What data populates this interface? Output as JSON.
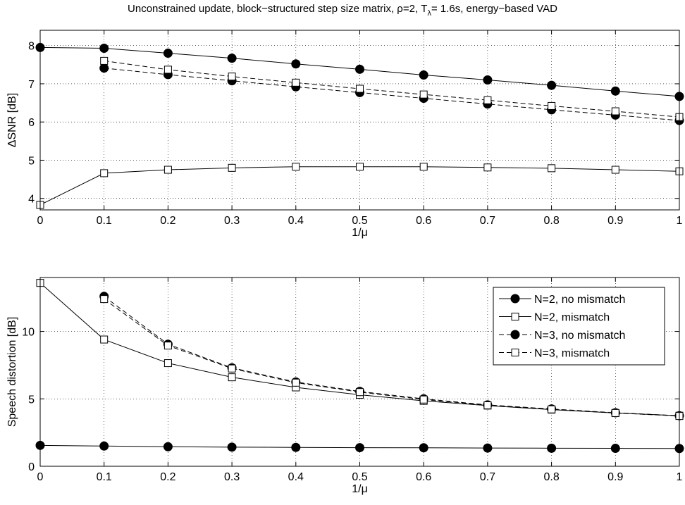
{
  "figure_title": {
    "main": "Unconstrained update, block−structured step size matrix, ρ=2, T",
    "subscript": "λ",
    "rest": "= 1.6s, energy−based VAD"
  },
  "chart_data": [
    {
      "type": "line",
      "xlabel": "1/μ",
      "ylabel": "ΔSNR [dB]",
      "xlim": [
        0,
        1
      ],
      "ylim": [
        3.7,
        8.4
      ],
      "grid": true,
      "legend": null,
      "xticks": [
        0,
        0.1,
        0.2,
        0.3,
        0.4,
        0.5,
        0.6,
        0.7,
        0.8,
        0.9,
        1
      ],
      "xticklabels": [
        "0",
        "0.1",
        "0.2",
        "0.3",
        "0.4",
        "0.5",
        "0.6",
        "0.7",
        "0.8",
        "0.9",
        "1"
      ],
      "yticks": [
        4,
        5,
        6,
        7,
        8
      ],
      "yticklabels": [
        "4",
        "5",
        "6",
        "7",
        "8"
      ],
      "series": [
        {
          "name": "N=2, no mismatch",
          "marker": "circle",
          "linestyle": "solid",
          "x": [
            0,
            0.1,
            0.2,
            0.3,
            0.4,
            0.5,
            0.6,
            0.7,
            0.8,
            0.9,
            1
          ],
          "y": [
            7.95,
            7.93,
            7.8,
            7.67,
            7.52,
            7.38,
            7.23,
            7.1,
            6.96,
            6.81,
            6.67
          ]
        },
        {
          "name": "N=2, mismatch",
          "marker": "square",
          "linestyle": "solid",
          "x": [
            0,
            0.1,
            0.2,
            0.3,
            0.4,
            0.5,
            0.6,
            0.7,
            0.8,
            0.9,
            1
          ],
          "y": [
            3.83,
            4.66,
            4.75,
            4.8,
            4.83,
            4.83,
            4.83,
            4.81,
            4.79,
            4.75,
            4.71
          ]
        },
        {
          "name": "N=3, no mismatch",
          "marker": "circle",
          "linestyle": "dashed",
          "x": [
            0.1,
            0.2,
            0.3,
            0.4,
            0.5,
            0.6,
            0.7,
            0.8,
            0.9,
            1
          ],
          "y": [
            7.41,
            7.24,
            7.08,
            6.92,
            6.77,
            6.62,
            6.47,
            6.32,
            6.18,
            6.04
          ]
        },
        {
          "name": "N=3, mismatch",
          "marker": "square",
          "linestyle": "dashed",
          "x": [
            0.1,
            0.2,
            0.3,
            0.4,
            0.5,
            0.6,
            0.7,
            0.8,
            0.9,
            1
          ],
          "y": [
            7.6,
            7.37,
            7.19,
            7.03,
            6.87,
            6.72,
            6.57,
            6.42,
            6.28,
            6.13
          ]
        }
      ]
    },
    {
      "type": "line",
      "xlabel": "1/μ",
      "ylabel": "Speech distortion [dB]",
      "xlim": [
        0,
        1
      ],
      "ylim": [
        0,
        14
      ],
      "grid": true,
      "legend": "top-right",
      "xticks": [
        0,
        0.1,
        0.2,
        0.3,
        0.4,
        0.5,
        0.6,
        0.7,
        0.8,
        0.9,
        1
      ],
      "xticklabels": [
        "0",
        "0.1",
        "0.2",
        "0.3",
        "0.4",
        "0.5",
        "0.6",
        "0.7",
        "0.8",
        "0.9",
        "1"
      ],
      "yticks": [
        0,
        5,
        10
      ],
      "yticklabels": [
        "0",
        "5",
        "10"
      ],
      "series": [
        {
          "name": "N=2, no mismatch",
          "marker": "circle",
          "linestyle": "solid",
          "x": [
            0,
            0.1,
            0.2,
            0.3,
            0.4,
            0.5,
            0.6,
            0.7,
            0.8,
            0.9,
            1
          ],
          "y": [
            1.55,
            1.5,
            1.45,
            1.42,
            1.4,
            1.38,
            1.37,
            1.35,
            1.34,
            1.33,
            1.32
          ]
        },
        {
          "name": "N=2, mismatch",
          "marker": "square",
          "linestyle": "solid",
          "x": [
            0,
            0.1,
            0.2,
            0.3,
            0.4,
            0.5,
            0.6,
            0.7,
            0.8,
            0.9,
            1
          ],
          "y": [
            13.6,
            9.4,
            7.65,
            6.6,
            5.85,
            5.3,
            4.85,
            4.5,
            4.2,
            3.95,
            3.75
          ]
        },
        {
          "name": "N=3, no mismatch",
          "marker": "circle",
          "linestyle": "dashed",
          "x": [
            0.1,
            0.2,
            0.3,
            0.4,
            0.5,
            0.6,
            0.7,
            0.8,
            0.9,
            1
          ],
          "y": [
            12.6,
            9.05,
            7.3,
            6.25,
            5.55,
            5.0,
            4.55,
            4.25,
            3.97,
            3.75
          ]
        },
        {
          "name": "N=3, mismatch",
          "marker": "square",
          "linestyle": "dashed",
          "x": [
            0.1,
            0.2,
            0.3,
            0.4,
            0.5,
            0.6,
            0.7,
            0.8,
            0.9,
            1
          ],
          "y": [
            12.4,
            8.95,
            7.25,
            6.2,
            5.5,
            4.95,
            4.52,
            4.22,
            3.95,
            3.73
          ]
        }
      ]
    }
  ]
}
